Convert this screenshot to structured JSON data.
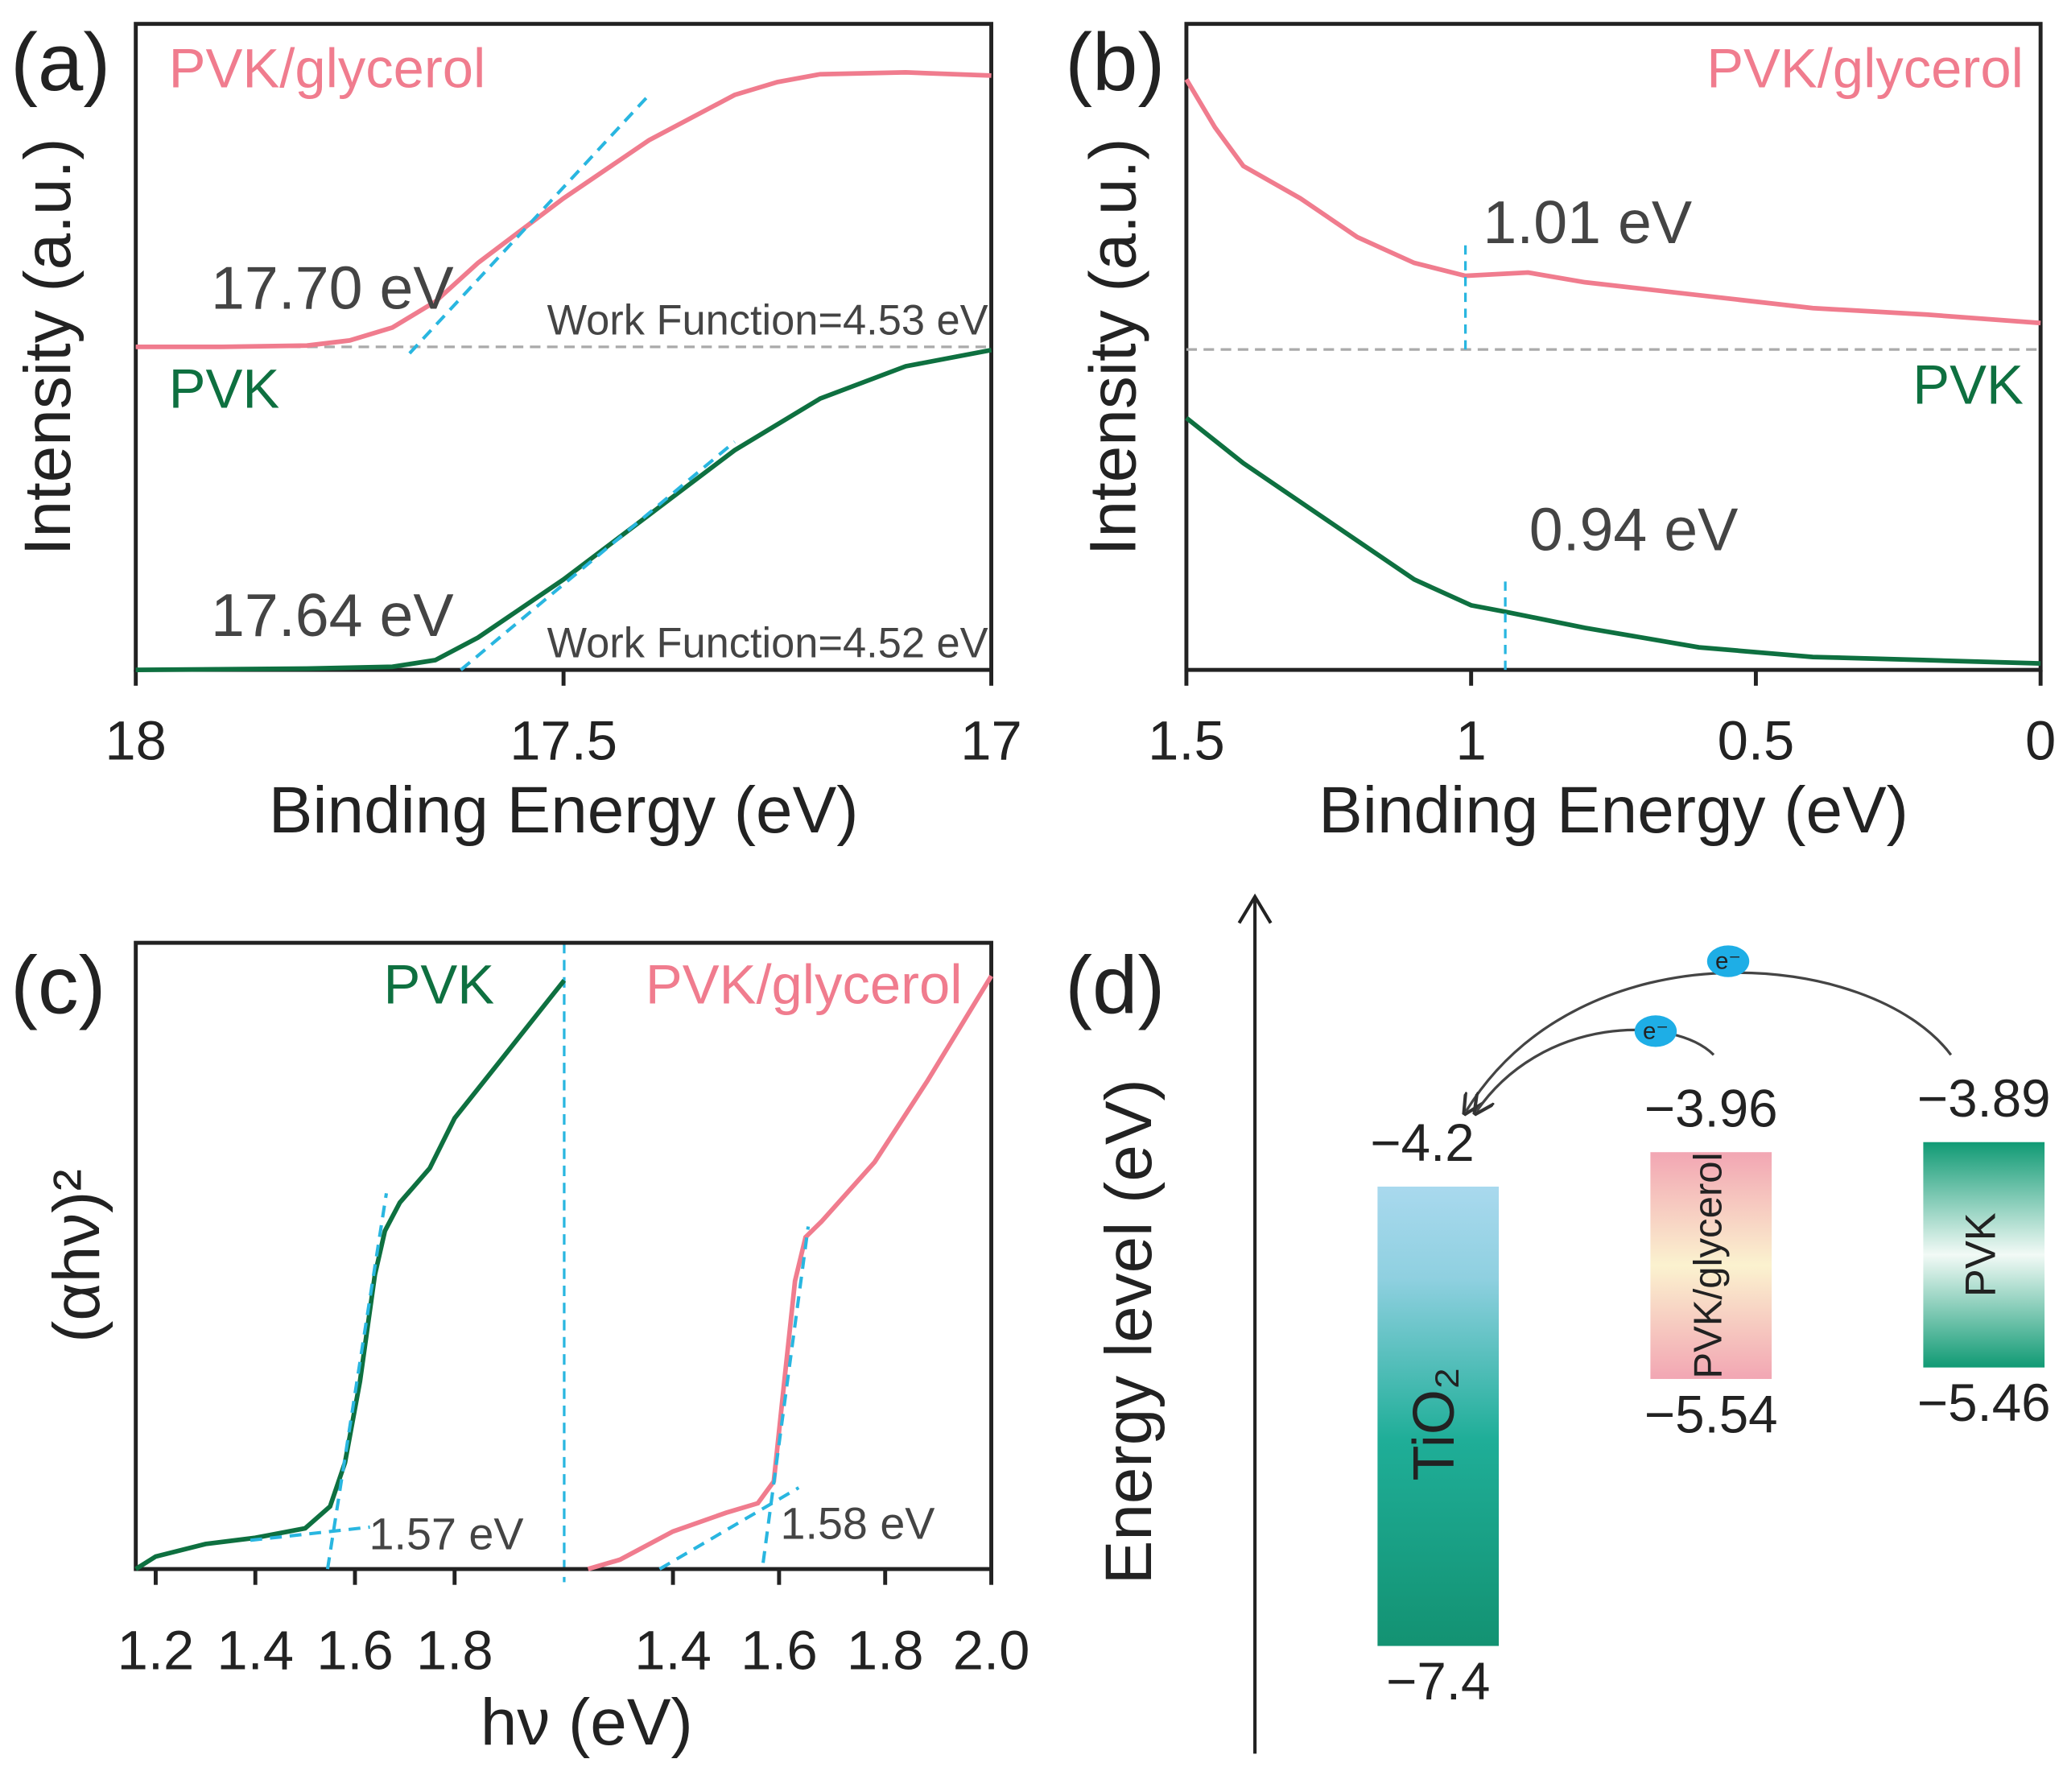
{
  "chart_data": [
    {
      "type": "line",
      "panel_label": "(a)",
      "xlabel": "Binding Energy (eV)",
      "ylabel": "Intensity (a.u.)",
      "xlim": [
        18,
        17
      ],
      "ylim": [
        0,
        1
      ],
      "xticks": [
        18,
        17.5,
        17
      ],
      "hline": 0.5,
      "series": [
        {
          "name": "PVK/glycerol",
          "color": "#f07c8e",
          "x": [
            18,
            17.9,
            17.8,
            17.75,
            17.7,
            17.65,
            17.6,
            17.5,
            17.4,
            17.3,
            17.25,
            17.2,
            17.1,
            17.0
          ],
          "values": [
            0.5,
            0.5,
            0.502,
            0.51,
            0.53,
            0.57,
            0.63,
            0.73,
            0.82,
            0.89,
            0.91,
            0.922,
            0.925,
            0.92
          ]
        },
        {
          "name": "PVK",
          "color": "#0e7040",
          "x": [
            18,
            17.8,
            17.7,
            17.65,
            17.6,
            17.5,
            17.4,
            17.3,
            17.2,
            17.1,
            17.0
          ],
          "values": [
            0,
            0.002,
            0.005,
            0.015,
            0.05,
            0.14,
            0.24,
            0.34,
            0.42,
            0.47,
            0.495
          ]
        }
      ],
      "fits": [
        {
          "color": "#29b6e0",
          "x": [
            17.68,
            17.4
          ],
          "values": [
            0.49,
            0.89
          ]
        },
        {
          "color": "#29b6e0",
          "x": [
            17.62,
            17.3
          ],
          "values": [
            0,
            0.353
          ]
        }
      ],
      "annotations": [
        "17.70 eV",
        "Work Function=4.53 eV",
        "17.64 eV",
        "Work Function=4.52 eV"
      ]
    },
    {
      "type": "line",
      "panel_label": "(b)",
      "xlabel": "Binding Energy (eV)",
      "ylabel": "Intensity (a.u.)",
      "xlim": [
        1.5,
        0
      ],
      "ylim": [
        0,
        1
      ],
      "xticks": [
        1.5,
        1,
        0.5,
        0
      ],
      "hline": 0.496,
      "series": [
        {
          "name": "PVK/glycerol",
          "color": "#f07c8e",
          "x": [
            1.5,
            1.45,
            1.4,
            1.3,
            1.2,
            1.1,
            1.01,
            0.9,
            0.8,
            0.6,
            0.4,
            0.2,
            0
          ],
          "values": [
            0.914,
            0.84,
            0.78,
            0.73,
            0.67,
            0.63,
            0.61,
            0.615,
            0.6,
            0.58,
            0.56,
            0.55,
            0.537
          ]
        },
        {
          "name": "PVK",
          "color": "#0e7040",
          "x": [
            1.5,
            1.4,
            1.3,
            1.2,
            1.1,
            1.0,
            0.94,
            0.8,
            0.6,
            0.4,
            0.2,
            0
          ],
          "values": [
            0.39,
            0.32,
            0.26,
            0.2,
            0.14,
            0.1,
            0.09,
            0.065,
            0.035,
            0.02,
            0.015,
            0.01
          ]
        }
      ],
      "annotations": [
        {
          "value": 1.01,
          "label": "1.01 eV"
        },
        {
          "value": 0.94,
          "label": "0.94 eV"
        }
      ]
    },
    {
      "type": "line",
      "panel_label": "(c)",
      "xlabel": "hν (eV)",
      "ylabel": "(αhν)²",
      "xlim": [
        1.16,
        2.02
      ],
      "ylim": [
        0,
        1
      ],
      "xticks": [
        1.2,
        1.4,
        1.6,
        1.8
      ],
      "series": [
        {
          "name": "PVK",
          "color": "#0e7040",
          "x": [
            1.16,
            1.2,
            1.3,
            1.4,
            1.5,
            1.55,
            1.58,
            1.61,
            1.64,
            1.66,
            1.69,
            1.75,
            1.8,
            1.9,
            2.0,
            2.02
          ],
          "values": [
            0.0,
            0.02,
            0.04,
            0.05,
            0.065,
            0.1,
            0.17,
            0.3,
            0.47,
            0.54,
            0.585,
            0.64,
            0.72,
            0.82,
            0.92,
            0.94
          ]
        }
      ],
      "fits": [
        {
          "color": "#29b6e0",
          "x": [
            1.545,
            1.663
          ],
          "values": [
            0,
            0.6
          ]
        },
        {
          "color": "#29b6e0",
          "x": [
            1.39,
            1.63
          ],
          "values": [
            0.046,
            0.067
          ]
        }
      ],
      "annotations": [
        "1.57 eV"
      ]
    },
    {
      "type": "line",
      "xlim": [
        1.195,
        2.0
      ],
      "ylim": [
        0,
        1
      ],
      "xticks": [
        1.4,
        1.6,
        1.8,
        {
          "value": 2,
          "label": "2.0"
        }
      ],
      "series": [
        {
          "name": "PVK/glycerol",
          "color": "#f07c8e",
          "x": [
            1.24,
            1.3,
            1.4,
            1.5,
            1.56,
            1.59,
            1.61,
            1.63,
            1.65,
            1.68,
            1.78,
            1.88,
            2.0
          ],
          "values": [
            0,
            0.015,
            0.06,
            0.09,
            0.105,
            0.14,
            0.3,
            0.46,
            0.53,
            0.555,
            0.65,
            0.78,
            0.947
          ]
        }
      ],
      "fits": [
        {
          "color": "#29b6e0",
          "x": [
            1.57,
            1.655
          ],
          "values": [
            0.01,
            0.547
          ]
        },
        {
          "color": "#29b6e0",
          "x": [
            1.375,
            1.637
          ],
          "values": [
            0,
            0.13
          ]
        }
      ],
      "annotations": [
        "1.58 eV"
      ]
    },
    {
      "type": "energy",
      "panel_label": "(d)",
      "ylabel": "Energy level (eV)",
      "ylim": [
        -8.15,
        -2.18
      ],
      "bars": [
        {
          "name": "TiO₂",
          "top": -4.2,
          "bottom": -7.4,
          "top_label": "−4.2",
          "bottom_label": "−7.4"
        },
        {
          "name": "PVK/glycerol",
          "top": -3.96,
          "bottom": -5.54,
          "top_label": "−3.96",
          "bottom_label": "−5.54"
        },
        {
          "name": "PVK",
          "top": -3.89,
          "bottom": -5.46,
          "top_label": "−3.89",
          "bottom_label": "−5.46"
        }
      ],
      "electron_labels": [
        "e⁻",
        "e⁻"
      ]
    }
  ]
}
